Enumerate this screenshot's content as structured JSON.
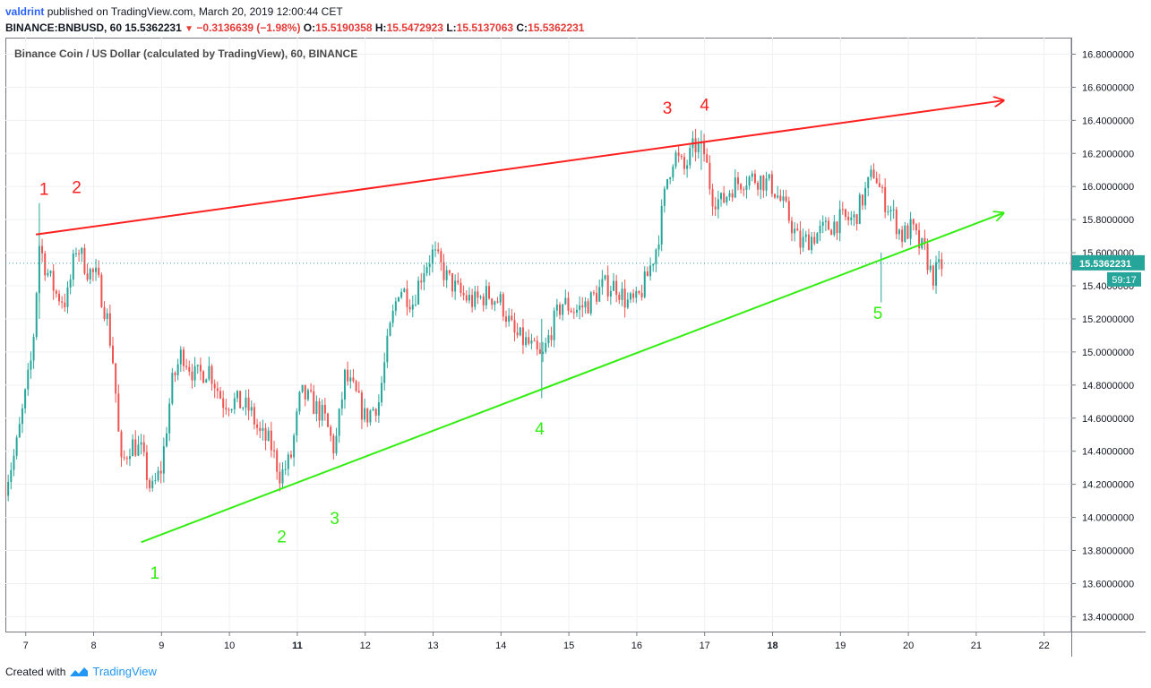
{
  "header": {
    "author": "valdrint",
    "published_text": "published on TradingView.com, March 20, 2019 12:00:44 CET",
    "symbol": "BINANCE:BNBUSD, 60",
    "last": "15.5362231",
    "change": "−0.3136639 (−1.98%)",
    "o_label": "O:",
    "o_value": "15.5190358",
    "h_label": "H:",
    "h_value": "15.5472923",
    "l_label": "L:",
    "l_value": "15.5137063",
    "c_label": "C:",
    "c_value": "15.5362231"
  },
  "footer": {
    "created_with": "Created with",
    "brand": "TradingView"
  },
  "colors": {
    "up": "#26a69a",
    "down": "#ef5350",
    "resistance": "#ff1f1f",
    "support": "#33ee11",
    "price_tag": "#26a69a"
  },
  "chart_data": {
    "type": "candlestick",
    "title": "Binance Coin / US Dollar (calculated by TradingView), 60, BINANCE",
    "x_ticks": [
      "7",
      "8",
      "9",
      "10",
      "11",
      "12",
      "13",
      "14",
      "15",
      "16",
      "17",
      "18",
      "19",
      "20",
      "21",
      "22"
    ],
    "x_range_days": [
      6.7,
      22.4
    ],
    "y_ticks": [
      "16.8000000",
      "16.6000000",
      "16.4000000",
      "16.2000000",
      "16.0000000",
      "15.8000000",
      "15.6000000",
      "15.4000000",
      "15.2000000",
      "15.0000000",
      "14.8000000",
      "14.6000000",
      "14.4000000",
      "14.2000000",
      "14.0000000",
      "13.8000000",
      "13.6000000",
      "13.4000000"
    ],
    "ylim": [
      13.31,
      16.9
    ],
    "price_tag": "15.5362231",
    "countdown": "59:17",
    "grid": true,
    "path_points": [
      [
        6.7,
        14.2
      ],
      [
        6.85,
        14.4
      ],
      [
        7.0,
        14.75
      ],
      [
        7.1,
        15.0
      ],
      [
        7.2,
        15.65
      ],
      [
        7.3,
        15.5
      ],
      [
        7.45,
        15.35
      ],
      [
        7.6,
        15.3
      ],
      [
        7.75,
        15.65
      ],
      [
        7.9,
        15.5
      ],
      [
        8.05,
        15.45
      ],
      [
        8.2,
        15.2
      ],
      [
        8.3,
        14.9
      ],
      [
        8.4,
        14.3
      ],
      [
        8.55,
        14.45
      ],
      [
        8.7,
        14.4
      ],
      [
        8.85,
        14.15
      ],
      [
        9.0,
        14.3
      ],
      [
        9.15,
        14.8
      ],
      [
        9.3,
        15.0
      ],
      [
        9.5,
        14.85
      ],
      [
        9.7,
        14.9
      ],
      [
        9.9,
        14.7
      ],
      [
        10.1,
        14.7
      ],
      [
        10.3,
        14.65
      ],
      [
        10.45,
        14.5
      ],
      [
        10.6,
        14.45
      ],
      [
        10.75,
        14.25
      ],
      [
        10.9,
        14.35
      ],
      [
        11.05,
        14.75
      ],
      [
        11.2,
        14.7
      ],
      [
        11.4,
        14.6
      ],
      [
        11.55,
        14.4
      ],
      [
        11.7,
        14.85
      ],
      [
        11.85,
        14.75
      ],
      [
        12.0,
        14.6
      ],
      [
        12.2,
        14.7
      ],
      [
        12.35,
        15.1
      ],
      [
        12.5,
        15.4
      ],
      [
        12.7,
        15.3
      ],
      [
        12.85,
        15.5
      ],
      [
        13.0,
        15.6
      ],
      [
        13.2,
        15.45
      ],
      [
        13.4,
        15.35
      ],
      [
        13.6,
        15.3
      ],
      [
        13.8,
        15.35
      ],
      [
        14.0,
        15.3
      ],
      [
        14.2,
        15.1
      ],
      [
        14.4,
        15.05
      ],
      [
        14.6,
        14.95
      ],
      [
        14.75,
        15.15
      ],
      [
        14.9,
        15.3
      ],
      [
        15.1,
        15.25
      ],
      [
        15.3,
        15.3
      ],
      [
        15.5,
        15.4
      ],
      [
        15.7,
        15.4
      ],
      [
        15.85,
        15.3
      ],
      [
        16.0,
        15.3
      ],
      [
        16.15,
        15.45
      ],
      [
        16.3,
        15.65
      ],
      [
        16.45,
        16.05
      ],
      [
        16.55,
        16.2
      ],
      [
        16.7,
        16.1
      ],
      [
        16.85,
        16.25
      ],
      [
        17.0,
        16.2
      ],
      [
        17.1,
        15.95
      ],
      [
        17.25,
        15.9
      ],
      [
        17.4,
        16.0
      ],
      [
        17.6,
        16.05
      ],
      [
        17.8,
        16.05
      ],
      [
        18.0,
        16.0
      ],
      [
        18.2,
        15.85
      ],
      [
        18.4,
        15.65
      ],
      [
        18.6,
        15.7
      ],
      [
        18.8,
        15.75
      ],
      [
        19.0,
        15.8
      ],
      [
        19.2,
        15.8
      ],
      [
        19.35,
        15.95
      ],
      [
        19.5,
        16.1
      ],
      [
        19.6,
        15.95
      ],
      [
        19.75,
        15.85
      ],
      [
        19.9,
        15.7
      ],
      [
        20.05,
        15.75
      ],
      [
        20.15,
        15.65
      ],
      [
        20.25,
        15.6
      ],
      [
        20.35,
        15.45
      ],
      [
        20.5,
        15.53
      ]
    ],
    "trendlines": [
      {
        "name": "resistance",
        "x1": 7.15,
        "y1": 15.71,
        "x2": 21.4,
        "y2": 16.52,
        "arrow": true,
        "color": "#ff1f1f"
      },
      {
        "name": "support",
        "x1": 8.7,
        "y1": 13.85,
        "x2": 21.4,
        "y2": 15.84,
        "arrow": true,
        "color": "#33ee11"
      }
    ],
    "annotations": [
      {
        "text": "1",
        "color": "#ff1f1f",
        "x": 7.27,
        "y": 15.95
      },
      {
        "text": "2",
        "color": "#ff1f1f",
        "x": 7.75,
        "y": 15.96
      },
      {
        "text": "3",
        "color": "#ff1f1f",
        "x": 16.45,
        "y": 16.44
      },
      {
        "text": "4",
        "color": "#ff1f1f",
        "x": 17.0,
        "y": 16.46
      },
      {
        "text": "1",
        "color": "#33ee11",
        "x": 8.9,
        "y": 13.63
      },
      {
        "text": "2",
        "color": "#33ee11",
        "x": 10.77,
        "y": 13.85
      },
      {
        "text": "3",
        "color": "#33ee11",
        "x": 11.55,
        "y": 13.96
      },
      {
        "text": "4",
        "color": "#33ee11",
        "x": 14.57,
        "y": 14.5
      },
      {
        "text": "5",
        "color": "#33ee11",
        "x": 19.55,
        "y": 15.2
      }
    ],
    "wicks": [
      {
        "x": 7.2,
        "low": 15.2,
        "high": 15.9
      },
      {
        "x": 14.6,
        "low": 14.72,
        "high": 15.2
      },
      {
        "x": 16.95,
        "low": 16.1,
        "high": 16.34
      },
      {
        "x": 19.6,
        "low": 15.3,
        "high": 15.6
      }
    ]
  }
}
